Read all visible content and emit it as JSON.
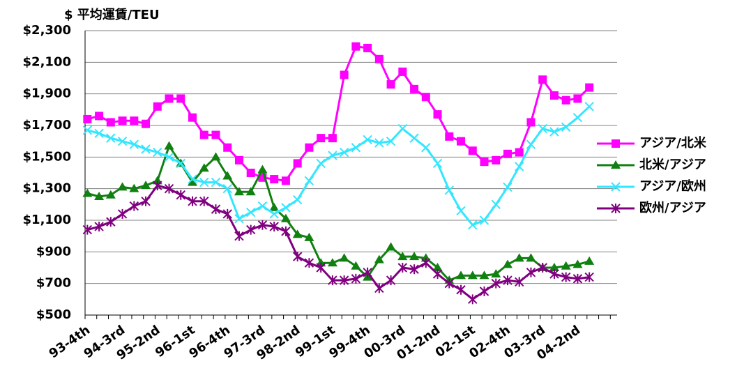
{
  "chart_data": {
    "type": "line",
    "title": "$ 平均運賃/TEU",
    "categories": [
      "93-4th",
      null,
      null,
      "94-3rd",
      null,
      null,
      "95-2nd",
      null,
      null,
      "96-1st",
      null,
      null,
      "96-4th",
      null,
      null,
      "97-3rd",
      null,
      null,
      "98-2nd",
      null,
      null,
      "99-1st",
      null,
      null,
      "99-4th",
      null,
      null,
      "00-3rd",
      null,
      null,
      "01-2nd",
      null,
      null,
      "02-1st",
      null,
      null,
      "02-4th",
      null,
      null,
      "03-3rd",
      null,
      null,
      "04-2nd",
      null
    ],
    "ylim": [
      500,
      2300
    ],
    "yticks": [
      {
        "value": 500,
        "label": "$500"
      },
      {
        "value": 700,
        "label": "$700"
      },
      {
        "value": 900,
        "label": "$900"
      },
      {
        "value": 1100,
        "label": "$1,100"
      },
      {
        "value": 1300,
        "label": "$1,300"
      },
      {
        "value": 1500,
        "label": "$1,500"
      },
      {
        "value": 1700,
        "label": "$1,700"
      },
      {
        "value": 1900,
        "label": "$1,900"
      },
      {
        "value": 2100,
        "label": "$2,100"
      },
      {
        "value": 2300,
        "label": "$2,300"
      }
    ],
    "grid": true,
    "legend": "right",
    "series": [
      {
        "name": "アジア/北米",
        "color": "#ff00ff",
        "marker": "square",
        "values": [
          1740,
          1760,
          1720,
          1730,
          1730,
          1710,
          1820,
          1870,
          1870,
          1750,
          1640,
          1640,
          1560,
          1480,
          1400,
          1370,
          1360,
          1350,
          1460,
          1560,
          1620,
          1620,
          2020,
          2200,
          2190,
          2120,
          1960,
          2040,
          1930,
          1880,
          1770,
          1630,
          1600,
          1540,
          1470,
          1480,
          1520,
          1530,
          1720,
          1990,
          1890,
          1860,
          1870,
          1940
        ]
      },
      {
        "name": "北米/アジア",
        "color": "#108010",
        "marker": "triangle",
        "values": [
          1270,
          1250,
          1260,
          1310,
          1300,
          1320,
          1350,
          1570,
          1460,
          1340,
          1430,
          1500,
          1380,
          1280,
          1280,
          1420,
          1180,
          1110,
          1010,
          990,
          830,
          830,
          860,
          810,
          740,
          850,
          930,
          870,
          870,
          860,
          800,
          720,
          750,
          750,
          750,
          760,
          820,
          860,
          860,
          800,
          800,
          810,
          820,
          840
        ]
      },
      {
        "name": "アジア/欧州",
        "color": "#33e6ff",
        "marker": "x",
        "values": [
          1670,
          1650,
          1620,
          1600,
          1580,
          1550,
          1530,
          1500,
          1460,
          1360,
          1340,
          1340,
          1300,
          1110,
          1150,
          1190,
          1140,
          1180,
          1230,
          1350,
          1460,
          1510,
          1530,
          1560,
          1610,
          1590,
          1600,
          1680,
          1620,
          1560,
          1460,
          1290,
          1160,
          1070,
          1100,
          1200,
          1310,
          1440,
          1580,
          1680,
          1660,
          1690,
          1750,
          1820
        ]
      },
      {
        "name": "欧州/アジア",
        "color": "#800080",
        "marker": "star",
        "values": [
          1040,
          1060,
          1090,
          1140,
          1190,
          1220,
          1320,
          1300,
          1260,
          1220,
          1220,
          1170,
          1140,
          1000,
          1040,
          1070,
          1060,
          1030,
          870,
          830,
          800,
          720,
          720,
          730,
          770,
          670,
          720,
          800,
          790,
          830,
          760,
          700,
          660,
          600,
          650,
          700,
          720,
          710,
          770,
          800,
          760,
          740,
          730,
          740
        ]
      }
    ]
  }
}
